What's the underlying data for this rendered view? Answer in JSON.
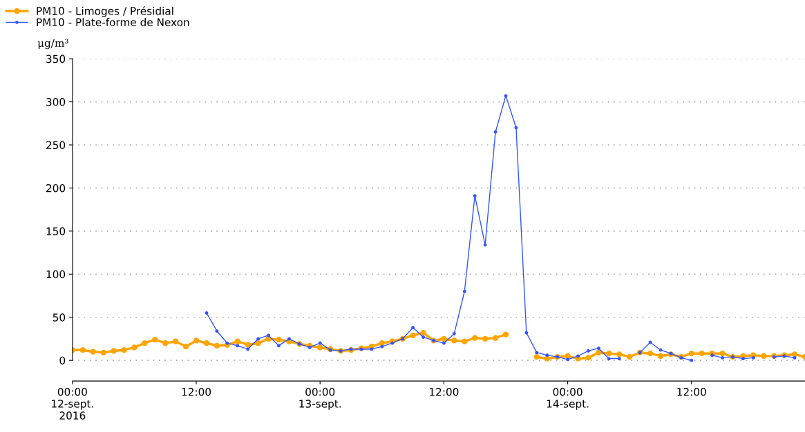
{
  "chart_data": {
    "type": "line",
    "ylabel": "μg/m³",
    "x": [
      "2016-09-12T00:00",
      "2016-09-12T01:00",
      "2016-09-12T02:00",
      "2016-09-12T03:00",
      "2016-09-12T04:00",
      "2016-09-12T05:00",
      "2016-09-12T06:00",
      "2016-09-12T07:00",
      "2016-09-12T08:00",
      "2016-09-12T09:00",
      "2016-09-12T10:00",
      "2016-09-12T11:00",
      "2016-09-12T12:00",
      "2016-09-12T13:00",
      "2016-09-12T14:00",
      "2016-09-12T15:00",
      "2016-09-12T16:00",
      "2016-09-12T17:00",
      "2016-09-12T18:00",
      "2016-09-12T19:00",
      "2016-09-12T20:00",
      "2016-09-12T21:00",
      "2016-09-12T22:00",
      "2016-09-12T23:00",
      "2016-09-13T00:00",
      "2016-09-13T01:00",
      "2016-09-13T02:00",
      "2016-09-13T03:00",
      "2016-09-13T04:00",
      "2016-09-13T05:00",
      "2016-09-13T06:00",
      "2016-09-13T07:00",
      "2016-09-13T08:00",
      "2016-09-13T09:00",
      "2016-09-13T10:00",
      "2016-09-13T11:00",
      "2016-09-13T12:00",
      "2016-09-13T13:00",
      "2016-09-13T14:00",
      "2016-09-13T15:00",
      "2016-09-13T16:00",
      "2016-09-13T17:00",
      "2016-09-13T18:00",
      "2016-09-13T19:00",
      "2016-09-13T20:00",
      "2016-09-13T21:00",
      "2016-09-13T22:00",
      "2016-09-13T23:00",
      "2016-09-14T00:00",
      "2016-09-14T01:00",
      "2016-09-14T02:00",
      "2016-09-14T03:00",
      "2016-09-14T04:00",
      "2016-09-14T05:00",
      "2016-09-14T06:00",
      "2016-09-14T07:00",
      "2016-09-14T08:00",
      "2016-09-14T09:00",
      "2016-09-14T10:00",
      "2016-09-14T11:00",
      "2016-09-14T12:00",
      "2016-09-14T13:00",
      "2016-09-14T14:00",
      "2016-09-14T15:00",
      "2016-09-14T16:00",
      "2016-09-14T17:00",
      "2016-09-14T18:00",
      "2016-09-14T19:00",
      "2016-09-14T20:00",
      "2016-09-14T21:00",
      "2016-09-14T22:00",
      "2016-09-14T23:00"
    ],
    "series": [
      {
        "name": "PM10 - Limoges / Présidial",
        "color": "#ffa500",
        "values": [
          12,
          12,
          10,
          9,
          11,
          12,
          15,
          20,
          24,
          20,
          22,
          16,
          23,
          20,
          17,
          18,
          22,
          18,
          20,
          25,
          24,
          22,
          19,
          17,
          15,
          13,
          11,
          12,
          14,
          16,
          20,
          22,
          25,
          29,
          32,
          23,
          25,
          23,
          22,
          26,
          25,
          26,
          30,
          null,
          null,
          4,
          2,
          4,
          5,
          2,
          3,
          9,
          8,
          7,
          4,
          9,
          8,
          5,
          7,
          4,
          8,
          8,
          8,
          8,
          4,
          5,
          6,
          5,
          5,
          6,
          7,
          4
        ]
      },
      {
        "name": "PM10 - Plate-forme de Nexon",
        "color": "#3355ff",
        "values": [
          null,
          null,
          null,
          null,
          null,
          null,
          null,
          null,
          null,
          null,
          null,
          null,
          null,
          55,
          34,
          20,
          17,
          13,
          25,
          29,
          17,
          25,
          19,
          15,
          20,
          12,
          11,
          13,
          13,
          13,
          16,
          20,
          25,
          38,
          27,
          23,
          20,
          31,
          80,
          191,
          134,
          265,
          307,
          270,
          32,
          9,
          6,
          4,
          1,
          5,
          11,
          14,
          2,
          2,
          null,
          9,
          21,
          12,
          8,
          3,
          0,
          null,
          6,
          3,
          4,
          2,
          3,
          null,
          4,
          5,
          3,
          null
        ]
      }
    ],
    "xlim": [
      "2016-09-12T00:00",
      "2016-09-14T23:00"
    ],
    "xticks": [
      {
        "value": "2016-09-12T00:00",
        "label": "00:00\n12-sept.\n2016"
      },
      {
        "value": "2016-09-12T12:00",
        "label": "12:00"
      },
      {
        "value": "2016-09-13T00:00",
        "label": "00:00\n13-sept."
      },
      {
        "value": "2016-09-13T12:00",
        "label": "12:00"
      },
      {
        "value": "2016-09-14T00:00",
        "label": "00:00\n14-sept."
      },
      {
        "value": "2016-09-14T12:00",
        "label": "12:00"
      }
    ],
    "ylim": [
      -24,
      350
    ],
    "yticks": [
      0,
      50,
      100,
      150,
      200,
      250,
      300,
      350
    ],
    "grid": "y",
    "legend": "top left",
    "marker": "circle",
    "line_style": "solid"
  }
}
